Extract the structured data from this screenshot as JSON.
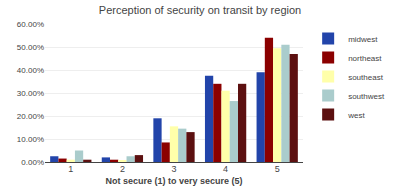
{
  "chart_data": {
    "type": "bar",
    "title": "Perception of security on transit by region",
    "xlabel": "Not secure (1) to very secure (5)",
    "categories": [
      1,
      2,
      3,
      4,
      5
    ],
    "series": [
      {
        "name": "midwest",
        "color": "#2244aa",
        "values": [
          0.025,
          0.02,
          0.19,
          0.375,
          0.39
        ]
      },
      {
        "name": "northeast",
        "color": "#8b0000",
        "values": [
          0.015,
          0.01,
          0.085,
          0.34,
          0.54
        ]
      },
      {
        "name": "southeast",
        "color": "#ffffaa",
        "values": [
          0.01,
          0.005,
          0.155,
          0.31,
          0.495
        ]
      },
      {
        "name": "southwest",
        "color": "#aacccc",
        "values": [
          0.05,
          0.025,
          0.145,
          0.265,
          0.51
        ]
      },
      {
        "name": "west",
        "color": "#5c1010",
        "values": [
          0.01,
          0.03,
          0.13,
          0.34,
          0.47
        ]
      }
    ],
    "ylim": [
      0,
      0.6
    ],
    "yticks": [
      {
        "value": 0.0,
        "label": "0.00%"
      },
      {
        "value": 0.1,
        "label": "10.00%"
      },
      {
        "value": 0.2,
        "label": "20.00%"
      },
      {
        "value": 0.3,
        "label": "30.00%"
      },
      {
        "value": 0.4,
        "label": "40.00%"
      },
      {
        "value": 0.5,
        "label": "50.00%"
      },
      {
        "value": 0.6,
        "label": "60.00%"
      }
    ],
    "grid": true,
    "legend": "upper right"
  }
}
